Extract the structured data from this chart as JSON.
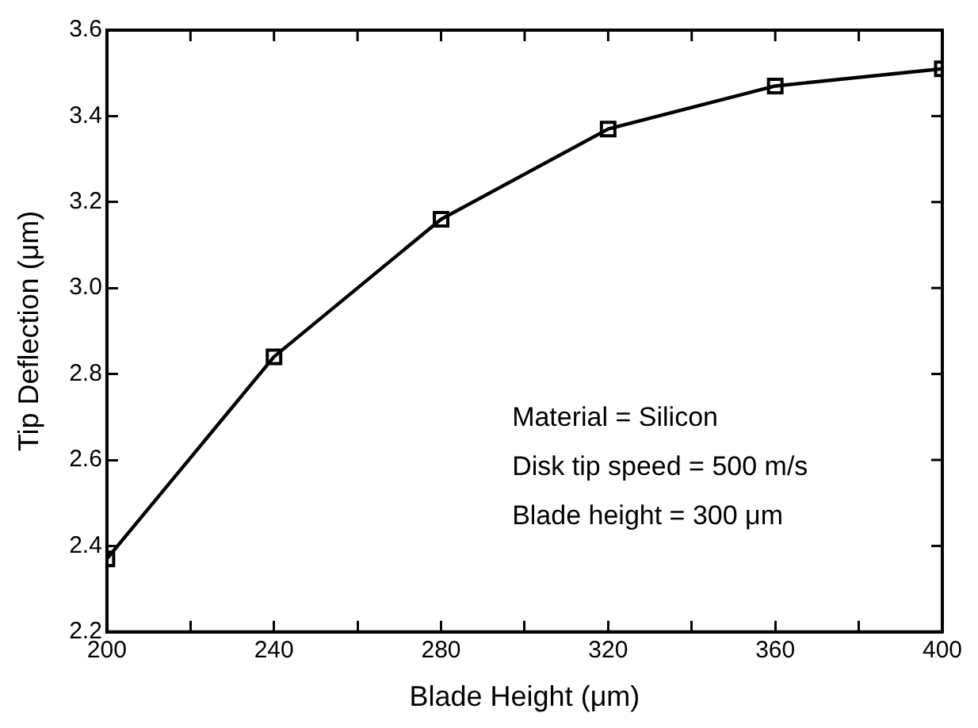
{
  "chart_data": {
    "type": "line",
    "xlabel": "Blade Height (μm)",
    "ylabel": "Tip Deflection (μm)",
    "x": [
      200,
      240,
      280,
      320,
      360,
      400
    ],
    "series": [
      {
        "color": "#000000",
        "values": [
          2.37,
          2.84,
          3.16,
          3.37,
          3.47,
          3.51
        ]
      }
    ],
    "xlim": [
      200,
      400
    ],
    "ylim": [
      2.2,
      3.6
    ],
    "xticks": [
      200,
      {
        "value": 220,
        "label": null
      },
      240,
      {
        "value": 260,
        "label": null
      },
      280,
      {
        "value": 300,
        "label": null
      },
      320,
      {
        "value": 340,
        "label": null
      },
      360,
      {
        "value": 380,
        "label": null
      },
      400
    ],
    "yticks": [
      2.2,
      2.4,
      2.6,
      2.8,
      {
        "value": 3,
        "label": "3.0"
      },
      3.2,
      3.4,
      3.6
    ],
    "marker": "square",
    "line_style": "solid",
    "grid": false,
    "legend": false,
    "annotations": [
      "Material = Silicon",
      "Disk tip speed = 500 m/s",
      "Blade height = 300 μm"
    ]
  }
}
